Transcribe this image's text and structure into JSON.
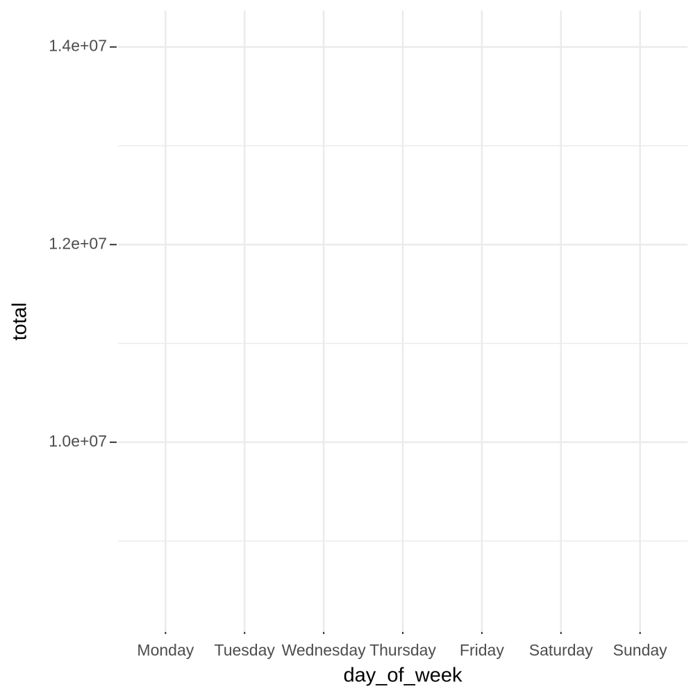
{
  "chart_data": {
    "type": "point",
    "x_label": "day_of_week",
    "y_label": "total",
    "categories": [
      "Monday",
      "Tuesday",
      "Wednesday",
      "Thursday",
      "Friday",
      "Saturday",
      "Sunday"
    ],
    "ylim": [
      8080000,
      14370000
    ],
    "yticks": [
      {
        "value": 10000000,
        "label": "1.0e+07"
      },
      {
        "value": 12000000,
        "label": "1.2e+07"
      },
      {
        "value": 14000000,
        "label": "1.4e+07"
      }
    ],
    "y_minor_ticks": [
      9000000,
      11000000,
      13000000
    ],
    "grid": true,
    "grid_color": "#ebebeb"
  }
}
